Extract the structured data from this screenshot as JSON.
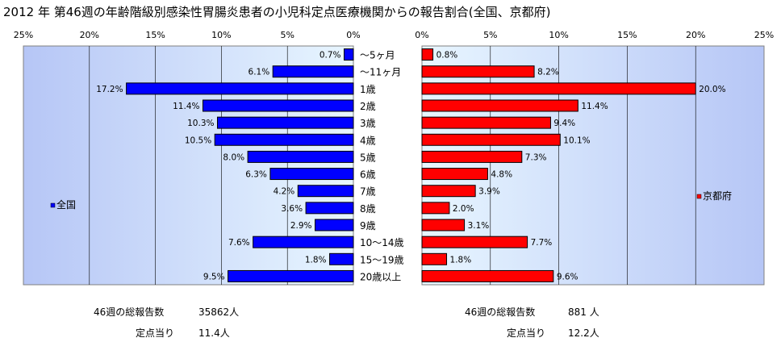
{
  "title": "2012 年 第46週の年齢階級別感染性胃腸炎患者の小児科定点医療機関からの報告割合(全国、京都府)",
  "chart_data": {
    "type": "bar",
    "categories": [
      "～5ヶ月",
      "～11ヶ月",
      "1歳",
      "2歳",
      "3歳",
      "4歳",
      "5歳",
      "6歳",
      "7歳",
      "8歳",
      "9歳",
      "10～14歳",
      "15～19歳",
      "20歳以上"
    ],
    "series": [
      {
        "name": "全国",
        "color": "#0000ff",
        "values": [
          0.7,
          6.1,
          17.2,
          11.4,
          10.3,
          10.5,
          8.0,
          6.3,
          4.2,
          3.6,
          2.9,
          7.6,
          1.8,
          9.5
        ]
      },
      {
        "name": "京都府",
        "color": "#ff0000",
        "values": [
          0.8,
          8.2,
          20.0,
          11.4,
          9.4,
          10.1,
          7.3,
          4.8,
          3.9,
          2.0,
          3.1,
          7.7,
          1.8,
          9.6
        ]
      }
    ],
    "xlim": [
      0,
      25
    ],
    "tick_values": [
      0,
      5,
      10,
      15,
      20,
      25
    ],
    "tick_labels": [
      "0%",
      "5%",
      "10%",
      "15%",
      "20%",
      "25%"
    ],
    "data_labels": [
      [
        "0.7%",
        "6.1%",
        "17.2%",
        "11.4%",
        "10.3%",
        "10.5%",
        "8.0%",
        "6.3%",
        "4.2%",
        "3.6%",
        "2.9%",
        "7.6%",
        "1.8%",
        "9.5%"
      ],
      [
        "0.8%",
        "8.2%",
        "20.0%",
        "11.4%",
        "9.4%",
        "10.1%",
        "7.3%",
        "4.8%",
        "3.9%",
        "2.0%",
        "3.1%",
        "7.7%",
        "1.8%",
        "9.6%"
      ]
    ],
    "grid": true
  },
  "colors": {
    "national": "#0000ff",
    "kyoto": "#ff0000",
    "plot_top": "#e8f6ff",
    "plot_bottom": "#b6c6f6"
  },
  "footer": {
    "national": {
      "total_label": "46週の総報告数",
      "total_value": "35862人",
      "per_site_label": "定点当り",
      "per_site_value": "11.4人"
    },
    "kyoto": {
      "total_label": "46週の総報告数",
      "total_value": "881 人",
      "per_site_label": "定点当り",
      "per_site_value": "12.2人"
    }
  }
}
